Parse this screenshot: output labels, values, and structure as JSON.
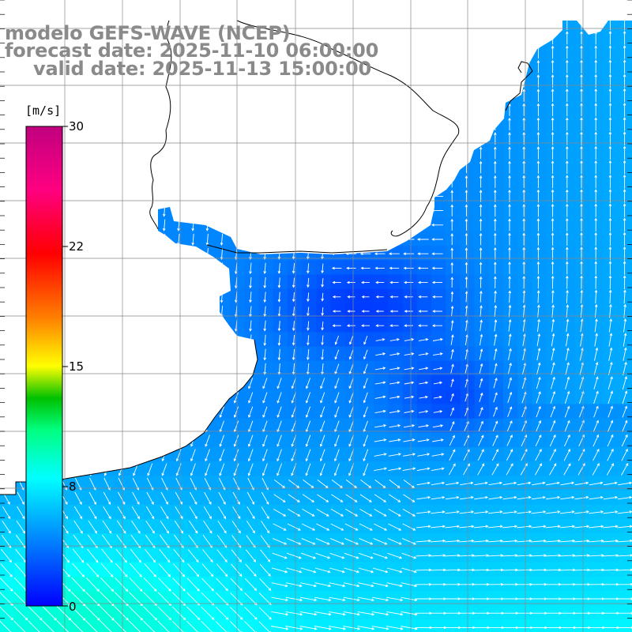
{
  "title": {
    "model": "modelo GEFS-WAVE (NCEP)",
    "forecast_date": "forecast date: 2025-11-10 06:00:00",
    "valid_date": "valid date: 2025-11-13 15:00:00"
  },
  "colorbar": {
    "unit": "[m/s]",
    "ticks": [
      "30",
      "22",
      "15",
      "8",
      "0"
    ],
    "min": 0,
    "max": 30,
    "stops": [
      {
        "v": 0,
        "color": "#0000ff"
      },
      {
        "v": 4,
        "color": "#0080ff"
      },
      {
        "v": 8,
        "color": "#00ffff"
      },
      {
        "v": 11,
        "color": "#00ff80"
      },
      {
        "v": 13,
        "color": "#00c000"
      },
      {
        "v": 15,
        "color": "#ffff00"
      },
      {
        "v": 18,
        "color": "#ff8000"
      },
      {
        "v": 22,
        "color": "#ff0000"
      },
      {
        "v": 26,
        "color": "#ff0080"
      },
      {
        "v": 30,
        "color": "#c00080"
      }
    ]
  },
  "map": {
    "land_color": "#ffffff",
    "coastline_color": "#000000",
    "grid_color": "#888888",
    "arrow_color": "#ffffff",
    "grid_on": true
  }
}
